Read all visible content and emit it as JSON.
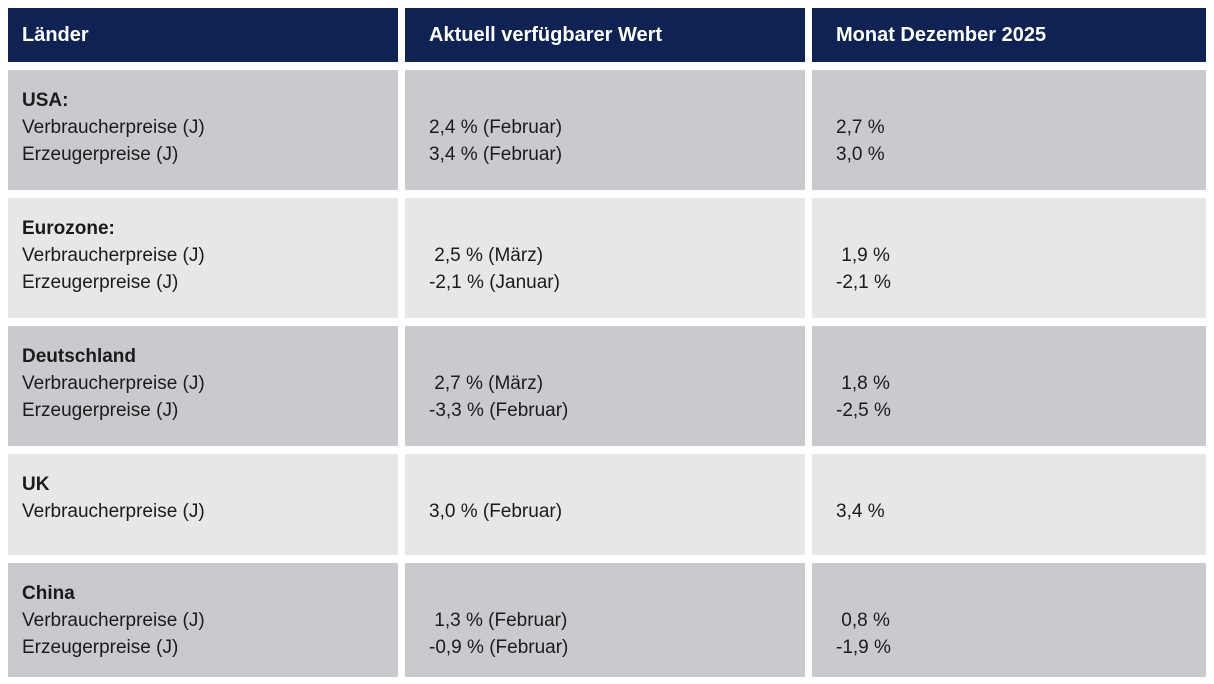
{
  "colors": {
    "header_background": "#0e2254",
    "header_text": "#ffffff",
    "row_shade_dark": "#c9cacd",
    "row_shade_light": "#e7e7e9",
    "body_text": "#1b1b1b",
    "gap_background": "#ffffff"
  },
  "chart_data": {
    "type": "table",
    "columns": [
      "Länder",
      "Aktuell verfügbarer Wert",
      "Monat Dezember 2025"
    ],
    "rows": [
      {
        "country": "USA:",
        "lines": [
          {
            "label": "Verbraucherpreise (J)",
            "current": "2,4 % (Februar)",
            "december": "2,7 %"
          },
          {
            "label": "Erzeugerpreise (J)",
            "current": "3,4 % (Februar)",
            "december": "3,0 %"
          }
        ]
      },
      {
        "country": "Eurozone:",
        "lines": [
          {
            "label": "Verbraucherpreise (J)",
            "current": " 2,5 % (März)",
            "december": " 1,9 %"
          },
          {
            "label": "Erzeugerpreise (J)",
            "current": "-2,1 % (Januar)",
            "december": "-2,1 %"
          }
        ]
      },
      {
        "country": "Deutschland",
        "lines": [
          {
            "label": "Verbraucherpreise (J)",
            "current": " 2,7 % (März)",
            "december": " 1,8 %"
          },
          {
            "label": "Erzeugerpreise (J)",
            "current": "-3,3 % (Februar)",
            "december": "-2,5 %"
          }
        ]
      },
      {
        "country": "UK",
        "lines": [
          {
            "label": "Verbraucherpreise (J)",
            "current": "3,0 % (Februar)",
            "december": "3,4 %"
          }
        ]
      },
      {
        "country": "China",
        "lines": [
          {
            "label": "Verbraucherpreise (J)",
            "current": " 1,3 % (Februar)",
            "december": " 0,8 %"
          },
          {
            "label": "Erzeugerpreise (J)",
            "current": "-0,9 % (Februar)",
            "december": "-1,9 %"
          }
        ]
      }
    ]
  }
}
